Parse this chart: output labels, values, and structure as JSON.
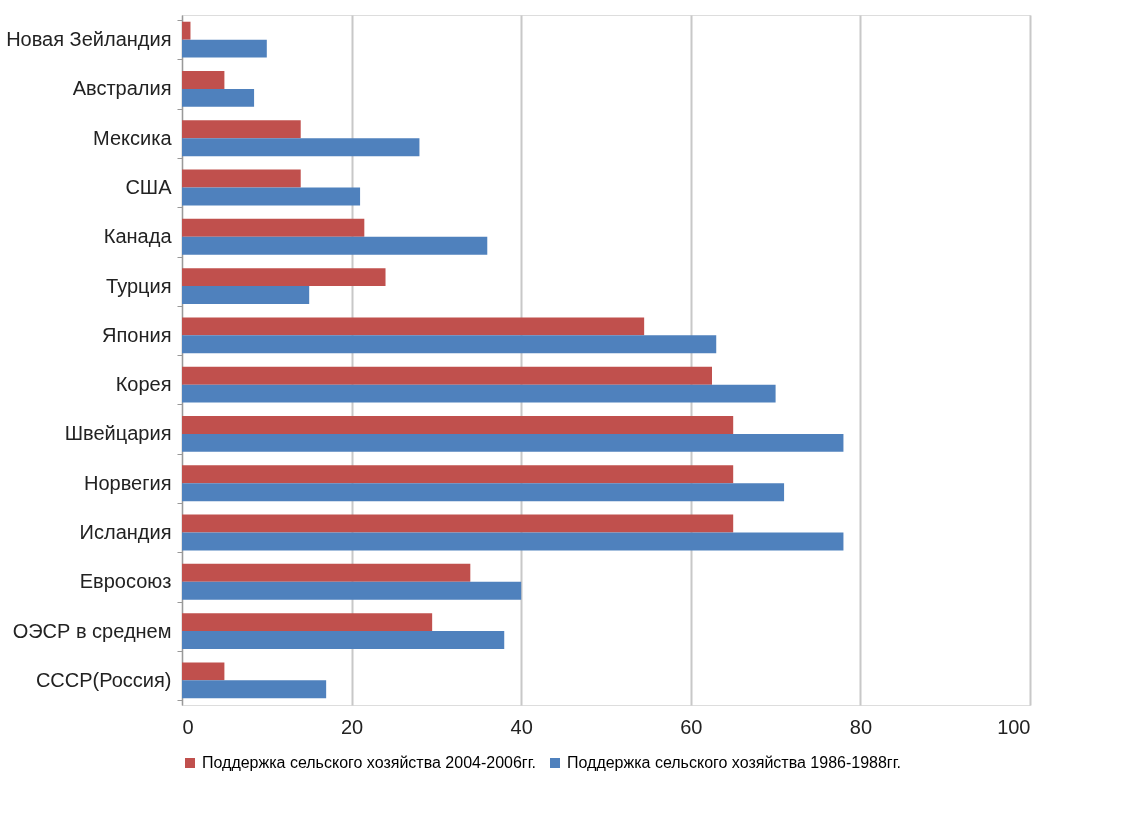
{
  "chart_data": {
    "type": "bar",
    "orientation": "horizontal",
    "categories": [
      "Новая Зейландия",
      "Австралия",
      "Мексика",
      "США",
      "Канада",
      "Турция",
      "Япония",
      "Корея",
      "Швейцария",
      "Норвегия",
      "Исландия",
      "Евросоюз",
      "ОЭСР в среднем",
      "СССР(Россия)"
    ],
    "series": [
      {
        "name": "Поддержка сельского хозяйства 2004-2006гг.",
        "color": "#c0504d",
        "values": [
          1,
          5,
          14,
          14,
          21.5,
          24,
          54.5,
          62.5,
          65,
          65,
          65,
          34,
          29.5,
          5
        ]
      },
      {
        "name": "Поддержка сельского хозяйства 1986-1988гг.",
        "color": "#4f81bd",
        "values": [
          10,
          8.5,
          28,
          21,
          36,
          15,
          63,
          70,
          78,
          71,
          78,
          40,
          38,
          17
        ]
      }
    ],
    "xlim": [
      0,
      100
    ],
    "xticks": [
      0,
      20,
      40,
      60,
      80,
      100
    ],
    "grid": "x",
    "legend": "bottom"
  }
}
